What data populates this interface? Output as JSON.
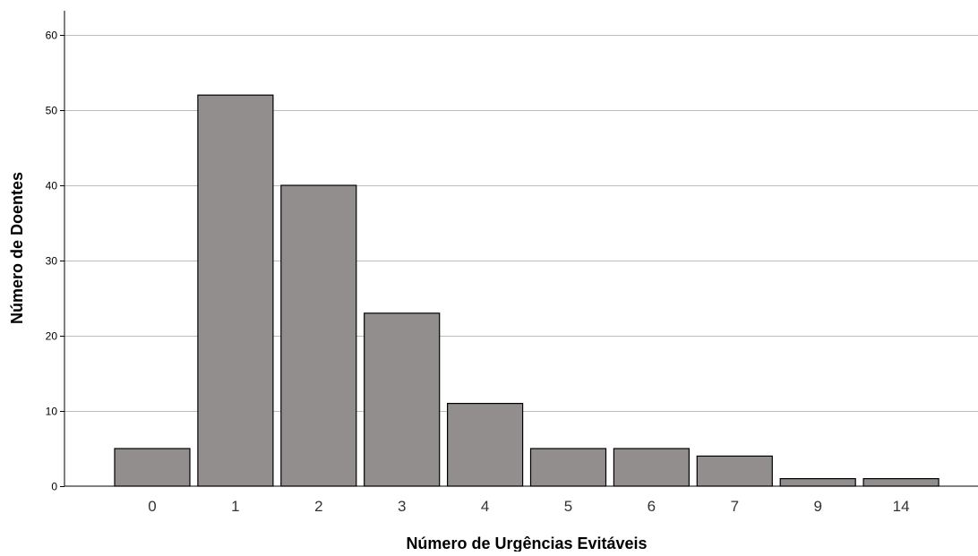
{
  "chart_data": {
    "type": "bar",
    "title": "",
    "xlabel": "Número de Urgências Evitáveis",
    "ylabel": "Número de Doentes",
    "categories": [
      "0",
      "1",
      "2",
      "3",
      "4",
      "5",
      "6",
      "7",
      "9",
      "14"
    ],
    "values": [
      5,
      52,
      40,
      23,
      11,
      5,
      5,
      4,
      1,
      1
    ],
    "ylim": [
      0,
      63
    ],
    "yticks": [
      0,
      10,
      20,
      30,
      40,
      50,
      60
    ],
    "grid": true,
    "legend": "none",
    "colors": {
      "bar_fill": "#928e8d",
      "bar_stroke": "#000000",
      "grid": "#bdbdbd",
      "axis": "#000000"
    }
  }
}
